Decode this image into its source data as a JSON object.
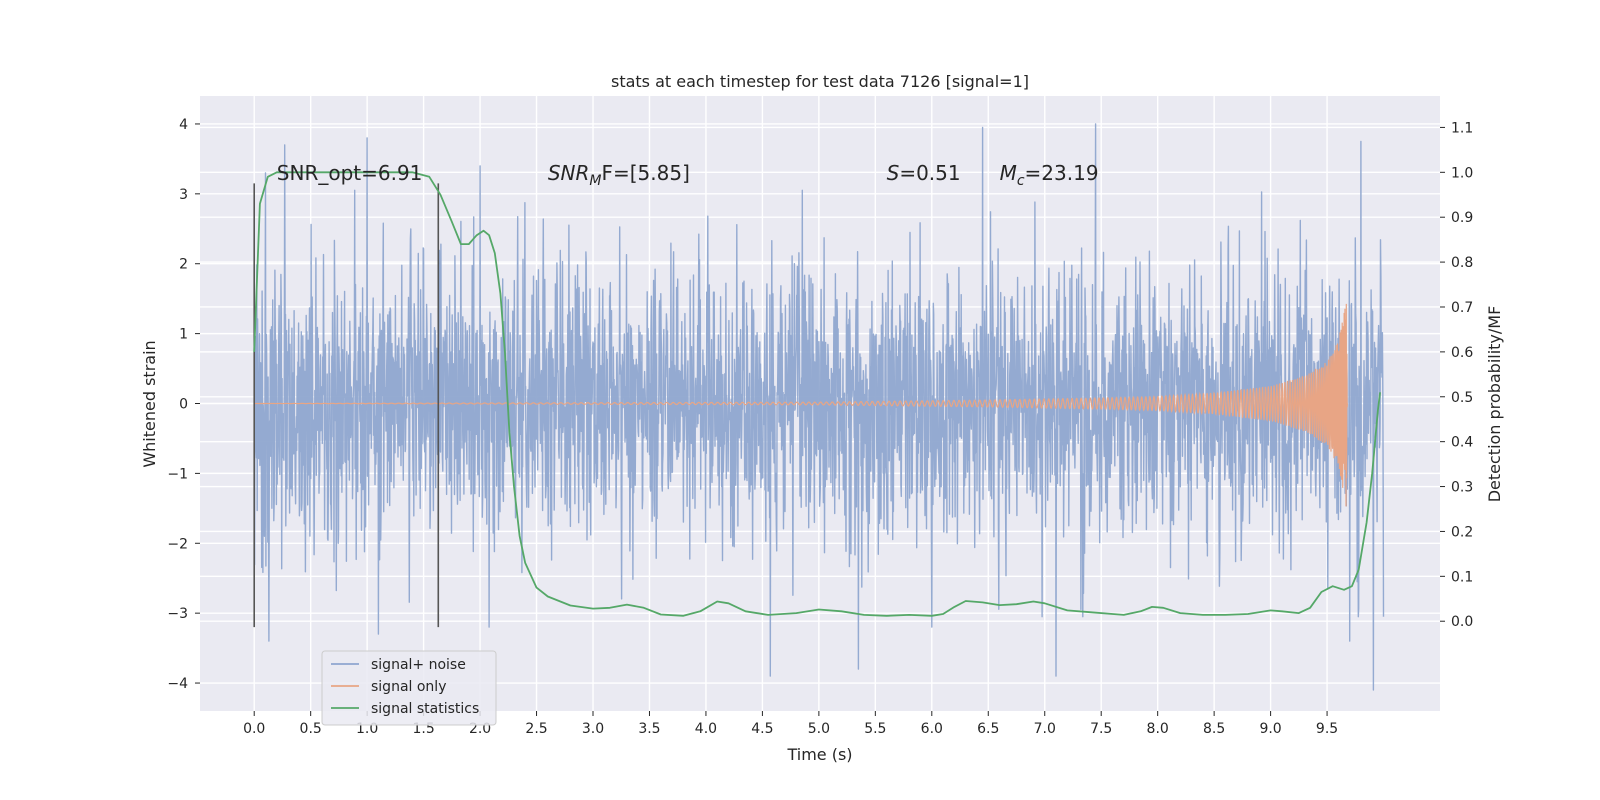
{
  "chart_data": {
    "type": "line",
    "title": "stats at each timestep for test data 7126 [signal=1]",
    "xlabel": "Time (s)",
    "ylabel": "Whitened strain",
    "y2label": "Detection probability/MF",
    "xlim": [
      -0.48,
      10.5
    ],
    "ylim": [
      -4.4,
      4.4
    ],
    "y2lim": [
      -0.2,
      1.17
    ],
    "xticks": [
      0.0,
      0.5,
      1.0,
      1.5,
      2.0,
      2.5,
      3.0,
      3.5,
      4.0,
      4.5,
      5.0,
      5.5,
      6.0,
      6.5,
      7.0,
      7.5,
      8.0,
      8.5,
      9.0,
      9.5
    ],
    "xtick_labels": [
      "0.0",
      "0.5",
      "1.0",
      "1.5",
      "2.0",
      "2.5",
      "3.0",
      "3.5",
      "4.0",
      "4.5",
      "5.0",
      "5.5",
      "6.0",
      "6.5",
      "7.0",
      "7.5",
      "8.0",
      "8.5",
      "9.0",
      "9.5"
    ],
    "yticks": [
      4,
      3,
      2,
      1,
      0,
      -1,
      -2,
      -3,
      -4
    ],
    "ytick_labels": [
      "4",
      "3",
      "2",
      "1",
      "0",
      "−1",
      "−2",
      "−3",
      "−4"
    ],
    "y2ticks": [
      1.1,
      1.0,
      0.9,
      0.8,
      0.7,
      0.6,
      0.5,
      0.4,
      0.3,
      0.2,
      0.1,
      0.0
    ],
    "y2tick_labels": [
      "1.1",
      "1.0",
      "0.9",
      "0.8",
      "0.7",
      "0.6",
      "0.5",
      "0.4",
      "0.3",
      "0.2",
      "0.1",
      "0.0"
    ],
    "grid": true,
    "legend_position": "lower-left",
    "series": [
      {
        "name": "signal+ noise",
        "color": "#8fa6cf",
        "axis": "left",
        "x_range": [
          0.0,
          10.0
        ],
        "typical_band": [
          -2.0,
          2.0
        ],
        "notable_peaks": [
          [
            0.1,
            3.3
          ],
          [
            0.27,
            3.7
          ],
          [
            1.0,
            3.8
          ],
          [
            0.13,
            -3.4
          ],
          [
            2.0,
            3.4
          ],
          [
            4.57,
            -3.9
          ],
          [
            6.45,
            3.95
          ],
          [
            7.45,
            4.0
          ],
          [
            9.8,
            3.75
          ],
          [
            9.91,
            -4.1
          ],
          [
            9.7,
            -3.4
          ],
          [
            1.1,
            -3.3
          ],
          [
            2.08,
            -3.2
          ],
          [
            5.35,
            -3.8
          ],
          [
            7.1,
            -3.9
          ],
          [
            6.0,
            -3.2
          ]
        ]
      },
      {
        "name": "signal only",
        "color": "#e8a585",
        "axis": "left",
        "envelope": [
          [
            0.0,
            0.0
          ],
          [
            5.0,
            0.02
          ],
          [
            6.5,
            0.05
          ],
          [
            7.5,
            0.08
          ],
          [
            8.0,
            0.1
          ],
          [
            8.5,
            0.15
          ],
          [
            9.0,
            0.25
          ],
          [
            9.3,
            0.4
          ],
          [
            9.5,
            0.6
          ],
          [
            9.6,
            0.9
          ],
          [
            9.65,
            1.3
          ],
          [
            9.67,
            1.5
          ],
          [
            9.68,
            0.0
          ]
        ]
      },
      {
        "name": "signal statistics",
        "color": "#55a868",
        "axis": "right",
        "points": [
          [
            0.0,
            0.6
          ],
          [
            0.05,
            0.93
          ],
          [
            0.12,
            0.99
          ],
          [
            0.2,
            1.0
          ],
          [
            1.0,
            1.0
          ],
          [
            1.4,
            1.0
          ],
          [
            1.55,
            0.99
          ],
          [
            1.65,
            0.95
          ],
          [
            1.75,
            0.89
          ],
          [
            1.83,
            0.84
          ],
          [
            1.9,
            0.84
          ],
          [
            1.97,
            0.86
          ],
          [
            2.03,
            0.87
          ],
          [
            2.08,
            0.86
          ],
          [
            2.13,
            0.82
          ],
          [
            2.18,
            0.73
          ],
          [
            2.22,
            0.6
          ],
          [
            2.26,
            0.42
          ],
          [
            2.3,
            0.3
          ],
          [
            2.35,
            0.19
          ],
          [
            2.4,
            0.13
          ],
          [
            2.5,
            0.075
          ],
          [
            2.6,
            0.055
          ],
          [
            2.8,
            0.035
          ],
          [
            3.0,
            0.028
          ],
          [
            3.15,
            0.03
          ],
          [
            3.3,
            0.037
          ],
          [
            3.45,
            0.03
          ],
          [
            3.6,
            0.015
          ],
          [
            3.8,
            0.012
          ],
          [
            3.95,
            0.022
          ],
          [
            4.1,
            0.044
          ],
          [
            4.2,
            0.04
          ],
          [
            4.35,
            0.022
          ],
          [
            4.55,
            0.014
          ],
          [
            4.8,
            0.018
          ],
          [
            5.0,
            0.026
          ],
          [
            5.2,
            0.022
          ],
          [
            5.4,
            0.014
          ],
          [
            5.6,
            0.012
          ],
          [
            5.8,
            0.014
          ],
          [
            6.0,
            0.012
          ],
          [
            6.1,
            0.016
          ],
          [
            6.2,
            0.032
          ],
          [
            6.3,
            0.045
          ],
          [
            6.45,
            0.042
          ],
          [
            6.6,
            0.036
          ],
          [
            6.75,
            0.038
          ],
          [
            6.9,
            0.044
          ],
          [
            7.0,
            0.04
          ],
          [
            7.2,
            0.024
          ],
          [
            7.4,
            0.02
          ],
          [
            7.6,
            0.016
          ],
          [
            7.7,
            0.014
          ],
          [
            7.85,
            0.022
          ],
          [
            7.95,
            0.032
          ],
          [
            8.05,
            0.03
          ],
          [
            8.2,
            0.018
          ],
          [
            8.4,
            0.014
          ],
          [
            8.6,
            0.014
          ],
          [
            8.8,
            0.016
          ],
          [
            9.0,
            0.024
          ],
          [
            9.1,
            0.022
          ],
          [
            9.25,
            0.018
          ],
          [
            9.35,
            0.03
          ],
          [
            9.45,
            0.065
          ],
          [
            9.55,
            0.078
          ],
          [
            9.65,
            0.07
          ],
          [
            9.72,
            0.078
          ],
          [
            9.78,
            0.115
          ],
          [
            9.85,
            0.22
          ],
          [
            9.9,
            0.33
          ],
          [
            9.95,
            0.47
          ],
          [
            9.97,
            0.51
          ]
        ]
      }
    ],
    "vertical_markers": [
      {
        "x": 0.0,
        "y_from": -3.2,
        "y_to": 3.15,
        "color": "#555555"
      },
      {
        "x": 1.63,
        "y_from": -3.2,
        "y_to": 3.15,
        "color": "#555555"
      }
    ],
    "annotations": [
      {
        "id": "snr_opt",
        "text": "SNR_opt=6.91",
        "x": 0.2,
        "y": 3.2
      },
      {
        "id": "snr_mf",
        "prefix": "SNR",
        "sub": "M",
        "suffix": "F=[5.85]",
        "x": 2.6,
        "y": 3.2
      },
      {
        "id": "s_val",
        "prefix": "S",
        "suffix": "=0.51",
        "x": 5.6,
        "y": 3.2
      },
      {
        "id": "mc_val",
        "prefix": "M",
        "sub": "c",
        "suffix": "=23.19",
        "x": 6.6,
        "y": 3.2
      }
    ]
  }
}
